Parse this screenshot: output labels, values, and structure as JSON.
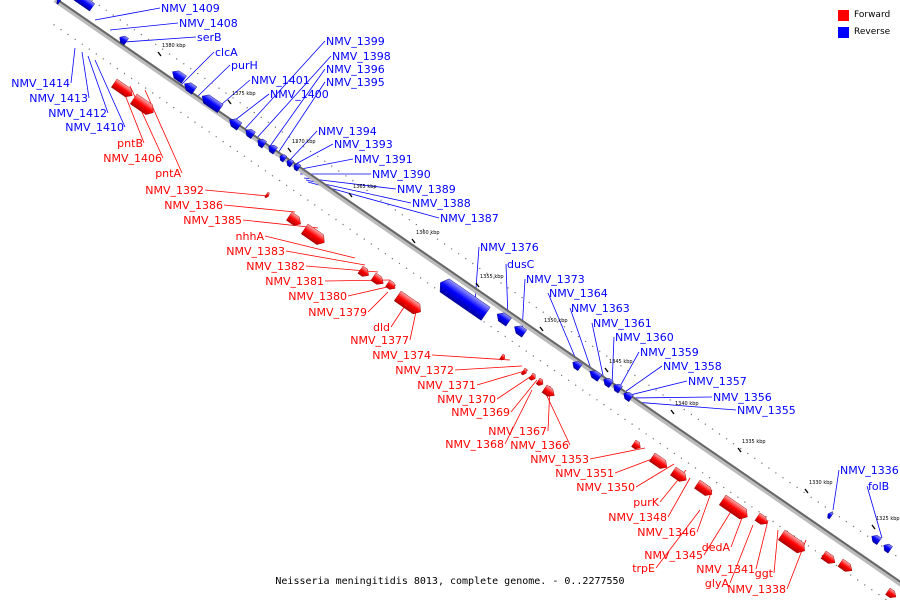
{
  "caption": "Neisseria meningitidis 8013, complete genome. - 0..2277550",
  "legend": {
    "forward": {
      "label": "Forward",
      "color": "#ff0000"
    },
    "reverse": {
      "label": "Reverse",
      "color": "#0000ff"
    }
  },
  "colors": {
    "forward": "#ff0000",
    "reverse": "#0000ff",
    "backbone": "#888888"
  },
  "tick_labels": [
    "1380 kbp",
    "1375 kbp",
    "1370 kbp",
    "1365 kbp",
    "1360 kbp",
    "1355 kbp",
    "1350 kbp",
    "1345 kbp",
    "1340 kbp",
    "1335 kbp",
    "1330 kbp",
    "1325 kbp"
  ],
  "reverse_genes": [
    "NMV_1409",
    "NMV_1408",
    "serB",
    "clcA",
    "purH",
    "NMV_1399",
    "NMV_1398",
    "NMV_1396",
    "NMV_1395",
    "NMV_1401",
    "NMV_1400",
    "NMV_1414",
    "NMV_1413",
    "NMV_1412",
    "NMV_1410",
    "NMV_1394",
    "NMV_1393",
    "NMV_1391",
    "NMV_1390",
    "NMV_1389",
    "NMV_1388",
    "NMV_1387",
    "NMV_1376",
    "dusC",
    "NMV_1373",
    "NMV_1364",
    "NMV_1363",
    "NMV_1361",
    "NMV_1360",
    "NMV_1359",
    "NMV_1358",
    "NMV_1357",
    "NMV_1356",
    "NMV_1355",
    "NMV_1336",
    "folB"
  ],
  "forward_genes": [
    "pntB",
    "NMV_1406",
    "pntA",
    "NMV_1392",
    "NMV_1386",
    "NMV_1385",
    "nhhA",
    "NMV_1383",
    "NMV_1382",
    "NMV_1381",
    "NMV_1380",
    "NMV_1379",
    "dld",
    "NMV_1377",
    "NMV_1374",
    "NMV_1372",
    "NMV_1371",
    "NMV_1370",
    "NMV_1369",
    "NMV_1367",
    "NMV_1368",
    "NMV_1366",
    "NMV_1353",
    "NMV_1351",
    "NMV_1350",
    "purK",
    "NMV_1348",
    "NMV_1346",
    "dedA",
    "NMV_1345",
    "trpE",
    "NMV_1341",
    "glyA",
    "ggt",
    "NMV_1338"
  ]
}
